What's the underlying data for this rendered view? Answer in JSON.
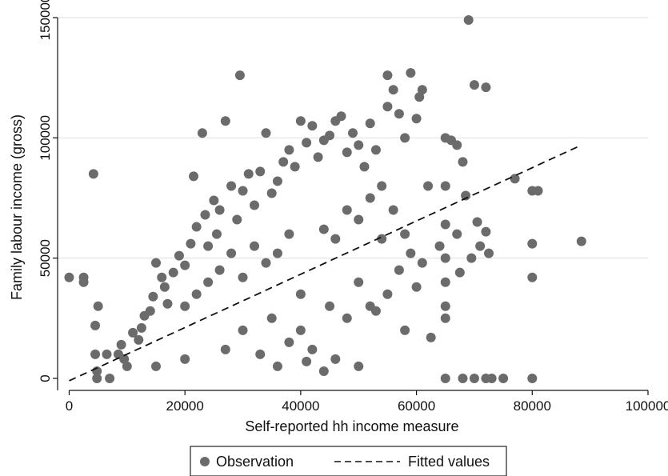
{
  "chart_data": {
    "type": "scatter",
    "xlabel": "Self-reported hh income measure",
    "ylabel": "Family labour income (gross)",
    "xlim": [
      -2000,
      100000
    ],
    "ylim": [
      -5000,
      150000
    ],
    "x_ticks": [
      0,
      20000,
      40000,
      60000,
      80000,
      100000
    ],
    "y_ticks": [
      0,
      50000,
      100000,
      150000
    ],
    "grid": "horizontal",
    "legend": {
      "placement": "bottom",
      "entries": [
        "Observation",
        "Fitted values"
      ]
    },
    "series": [
      {
        "name": "Observation",
        "kind": "scatter",
        "color": "#6b6b6b",
        "points": [
          [
            0,
            42000
          ],
          [
            2500,
            42000
          ],
          [
            2500,
            40000
          ],
          [
            4200,
            85000
          ],
          [
            4500,
            22000
          ],
          [
            4500,
            10000
          ],
          [
            4800,
            3000
          ],
          [
            4800,
            0
          ],
          [
            5000,
            30000
          ],
          [
            6500,
            10000
          ],
          [
            7000,
            0
          ],
          [
            8500,
            10000
          ],
          [
            9000,
            14000
          ],
          [
            9500,
            8000
          ],
          [
            10000,
            5000
          ],
          [
            11000,
            19000
          ],
          [
            12000,
            16000
          ],
          [
            12500,
            21000
          ],
          [
            13000,
            26000
          ],
          [
            14000,
            28000
          ],
          [
            14500,
            34000
          ],
          [
            15000,
            48000
          ],
          [
            16000,
            42000
          ],
          [
            16500,
            38000
          ],
          [
            17000,
            31000
          ],
          [
            18000,
            44000
          ],
          [
            19000,
            51000
          ],
          [
            20000,
            47000
          ],
          [
            21000,
            56000
          ],
          [
            21500,
            84000
          ],
          [
            22000,
            63000
          ],
          [
            23000,
            102000
          ],
          [
            23500,
            68000
          ],
          [
            24000,
            55000
          ],
          [
            25000,
            74000
          ],
          [
            25500,
            60000
          ],
          [
            26000,
            70000
          ],
          [
            27000,
            107000
          ],
          [
            28000,
            80000
          ],
          [
            29000,
            66000
          ],
          [
            29500,
            126000
          ],
          [
            30000,
            78000
          ],
          [
            31000,
            85000
          ],
          [
            32000,
            72000
          ],
          [
            33000,
            86000
          ],
          [
            34000,
            102000
          ],
          [
            35000,
            77000
          ],
          [
            36000,
            82000
          ],
          [
            37000,
            90000
          ],
          [
            38000,
            95000
          ],
          [
            39000,
            88000
          ],
          [
            40000,
            107000
          ],
          [
            41000,
            98000
          ],
          [
            42000,
            105000
          ],
          [
            43000,
            92000
          ],
          [
            44000,
            99000
          ],
          [
            45000,
            101000
          ],
          [
            46000,
            107000
          ],
          [
            47000,
            109000
          ],
          [
            48000,
            94000
          ],
          [
            49000,
            102000
          ],
          [
            50000,
            97000
          ],
          [
            51000,
            88000
          ],
          [
            52000,
            106000
          ],
          [
            53000,
            95000
          ],
          [
            54000,
            80000
          ],
          [
            55000,
            113000
          ],
          [
            55000,
            126000
          ],
          [
            56000,
            120000
          ],
          [
            57000,
            110000
          ],
          [
            58000,
            100000
          ],
          [
            59000,
            127000
          ],
          [
            60000,
            108000
          ],
          [
            60500,
            117000
          ],
          [
            61000,
            120000
          ],
          [
            62000,
            80000
          ],
          [
            62500,
            17000
          ],
          [
            64000,
            55000
          ],
          [
            65000,
            100000
          ],
          [
            65000,
            80000
          ],
          [
            65000,
            64000
          ],
          [
            65000,
            50000
          ],
          [
            65000,
            40000
          ],
          [
            65000,
            30000
          ],
          [
            65000,
            25000
          ],
          [
            66000,
            99000
          ],
          [
            67000,
            97000
          ],
          [
            67000,
            60000
          ],
          [
            67500,
            44000
          ],
          [
            68000,
            90000
          ],
          [
            68500,
            76000
          ],
          [
            69000,
            149000
          ],
          [
            69500,
            50000
          ],
          [
            70000,
            122000
          ],
          [
            70500,
            65000
          ],
          [
            71000,
            55000
          ],
          [
            72000,
            121000
          ],
          [
            72000,
            61000
          ],
          [
            72500,
            52000
          ],
          [
            77000,
            83000
          ],
          [
            80000,
            78000
          ],
          [
            80000,
            56000
          ],
          [
            80000,
            42000
          ],
          [
            81000,
            78000
          ],
          [
            88500,
            57000
          ],
          [
            65000,
            0
          ],
          [
            68000,
            0
          ],
          [
            70000,
            0
          ],
          [
            72000,
            0
          ],
          [
            73000,
            0
          ],
          [
            75000,
            0
          ],
          [
            80000,
            0
          ],
          [
            40000,
            35000
          ],
          [
            38000,
            60000
          ],
          [
            44000,
            62000
          ],
          [
            46000,
            58000
          ],
          [
            48000,
            70000
          ],
          [
            50000,
            66000
          ],
          [
            52000,
            75000
          ],
          [
            54000,
            58000
          ],
          [
            56000,
            70000
          ],
          [
            58000,
            60000
          ],
          [
            36000,
            52000
          ],
          [
            30000,
            42000
          ],
          [
            32000,
            55000
          ],
          [
            34000,
            48000
          ],
          [
            28000,
            52000
          ],
          [
            26000,
            45000
          ],
          [
            24000,
            40000
          ],
          [
            22000,
            35000
          ],
          [
            20000,
            30000
          ],
          [
            30000,
            20000
          ],
          [
            35000,
            25000
          ],
          [
            40000,
            20000
          ],
          [
            45000,
            30000
          ],
          [
            50000,
            40000
          ],
          [
            55000,
            35000
          ],
          [
            57000,
            45000
          ],
          [
            59000,
            52000
          ],
          [
            60000,
            38000
          ],
          [
            61000,
            48000
          ],
          [
            52000,
            30000
          ],
          [
            53000,
            28000
          ],
          [
            48000,
            25000
          ],
          [
            42000,
            12000
          ],
          [
            38000,
            15000
          ],
          [
            33000,
            10000
          ],
          [
            27000,
            12000
          ],
          [
            20000,
            8000
          ],
          [
            15000,
            5000
          ],
          [
            58000,
            20000
          ],
          [
            46000,
            8000
          ],
          [
            50000,
            5000
          ],
          [
            44000,
            3000
          ],
          [
            41000,
            7000
          ],
          [
            36000,
            5000
          ]
        ]
      },
      {
        "name": "Fitted values",
        "kind": "line",
        "style": "dashed",
        "color": "#111111",
        "x": [
          0,
          88500
        ],
        "y": [
          -1000,
          97000
        ]
      }
    ]
  }
}
